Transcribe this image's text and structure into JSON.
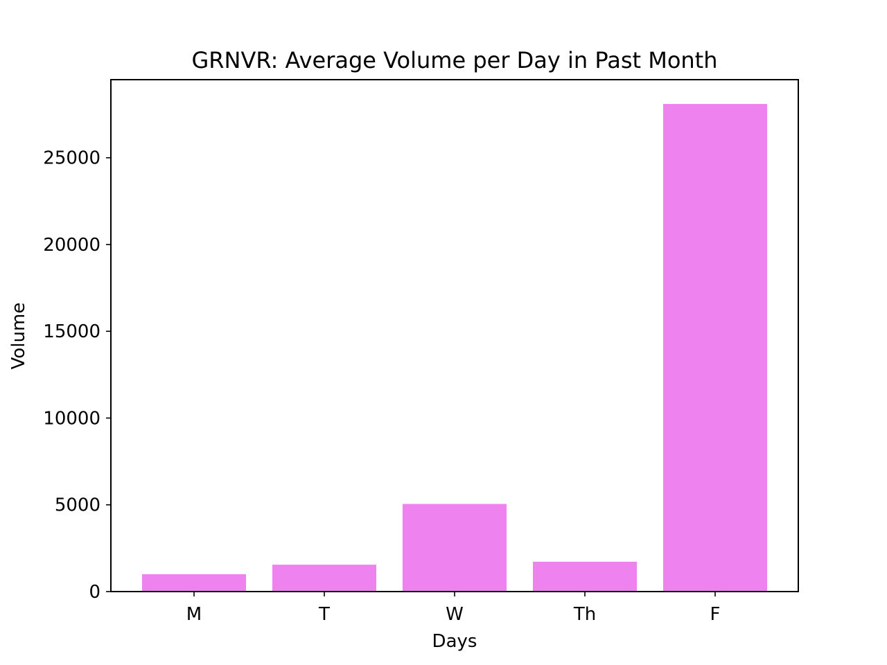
{
  "chart_data": {
    "type": "bar",
    "title": "GRNVR: Average Volume per Day in Past Month",
    "xlabel": "Days",
    "ylabel": "Volume",
    "categories": [
      "M",
      "T",
      "W",
      "Th",
      "F"
    ],
    "values": [
      1000,
      1550,
      5050,
      1720,
      28100
    ],
    "ylim": [
      0,
      29500
    ],
    "yticks": [
      0,
      5000,
      10000,
      15000,
      20000,
      25000
    ],
    "bar_color": "#ee82ee",
    "grid": false,
    "legend": "none"
  }
}
